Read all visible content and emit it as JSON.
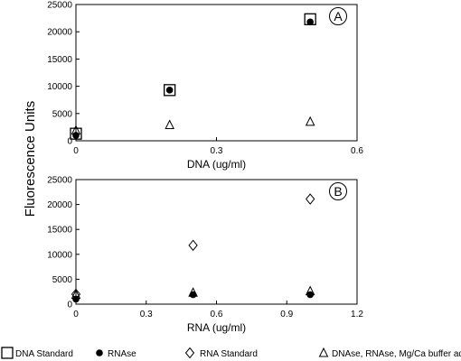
{
  "chart_data": [
    {
      "type": "scatter",
      "panel_label": "A",
      "xlabel": "DNA (ug/ml)",
      "xlim": [
        0,
        0.6
      ],
      "ylim": [
        0,
        25000
      ],
      "xticks": [
        "0",
        "0.3",
        "0.6"
      ],
      "yticks": [
        "0",
        "5000",
        "10000",
        "15000",
        "20000",
        "25000"
      ],
      "series": [
        {
          "name": "DNA Standard",
          "marker": "square",
          "x": [
            0,
            0.2,
            0.5
          ],
          "y": [
            1300,
            9300,
            22300
          ]
        },
        {
          "name": "RNAse",
          "marker": "circle",
          "x": [
            0,
            0.2,
            0.5
          ],
          "y": [
            1000,
            9300,
            21800
          ]
        },
        {
          "name": "DNAse, RNAse, Mg/Ca buffer added to NA standard",
          "marker": "triangle",
          "x": [
            0,
            0.2,
            0.5
          ],
          "y": [
            1900,
            2900,
            3500
          ]
        }
      ]
    },
    {
      "type": "scatter",
      "panel_label": "B",
      "xlabel": "RNA (ug/ml)",
      "xlim": [
        0,
        1.2
      ],
      "ylim": [
        0,
        25000
      ],
      "xticks": [
        "0",
        "0.3",
        "0.6",
        "0.9",
        "1.2"
      ],
      "yticks": [
        "0",
        "5000",
        "10000",
        "15000",
        "20000",
        "25000"
      ],
      "series": [
        {
          "name": "RNA Standard",
          "marker": "diamond",
          "x": [
            0,
            0.5,
            1.0
          ],
          "y": [
            2000,
            11800,
            21100
          ]
        },
        {
          "name": "RNAse",
          "marker": "circle",
          "x": [
            0,
            0.5,
            1.0
          ],
          "y": [
            1000,
            1900,
            1900
          ]
        },
        {
          "name": "DNAse, RNAse, Mg/Ca buffer added to NA standard",
          "marker": "triangle",
          "x": [
            0,
            0.5,
            1.0
          ],
          "y": [
            1900,
            2300,
            2600
          ]
        }
      ]
    }
  ],
  "ylabel": "Fluorescence Units",
  "legend": [
    {
      "marker": "square",
      "label": "DNA Standard"
    },
    {
      "marker": "circle",
      "label": "RNAse"
    },
    {
      "marker": "diamond",
      "label": "RNA Standard"
    },
    {
      "marker": "triangle",
      "label": "DNAse, RNAse, Mg/Ca buffer added to NA standard"
    }
  ],
  "colors": {
    "ink": "#000000",
    "background": "#ffffff"
  }
}
